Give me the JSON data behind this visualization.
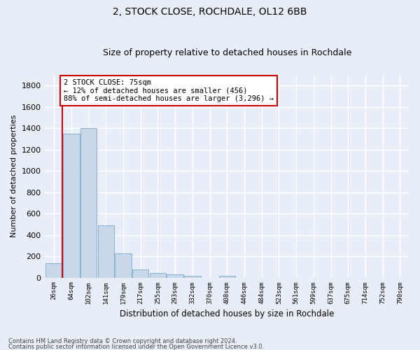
{
  "title": "2, STOCK CLOSE, ROCHDALE, OL12 6BB",
  "subtitle": "Size of property relative to detached houses in Rochdale",
  "xlabel": "Distribution of detached houses by size in Rochdale",
  "ylabel": "Number of detached properties",
  "bar_color": "#c8d8ea",
  "bar_edge_color": "#7aaac8",
  "vline_color": "#cc0000",
  "annotation_text": "2 STOCK CLOSE: 75sqm\n← 12% of detached houses are smaller (456)\n88% of semi-detached houses are larger (3,296) →",
  "annotation_box_color": "#cc0000",
  "background_color": "#e8eef8",
  "grid_color": "#ffffff",
  "categories": [
    "26sqm",
    "64sqm",
    "102sqm",
    "141sqm",
    "179sqm",
    "217sqm",
    "255sqm",
    "293sqm",
    "332sqm",
    "370sqm",
    "408sqm",
    "446sqm",
    "484sqm",
    "523sqm",
    "561sqm",
    "599sqm",
    "637sqm",
    "675sqm",
    "714sqm",
    "752sqm",
    "790sqm"
  ],
  "values": [
    135,
    1345,
    1400,
    490,
    225,
    75,
    45,
    27,
    15,
    0,
    20,
    0,
    0,
    0,
    0,
    0,
    0,
    0,
    0,
    0,
    0
  ],
  "ylim": [
    0,
    1900
  ],
  "yticks": [
    0,
    200,
    400,
    600,
    800,
    1000,
    1200,
    1400,
    1600,
    1800
  ],
  "footnote1": "Contains HM Land Registry data © Crown copyright and database right 2024.",
  "footnote2": "Contains public sector information licensed under the Open Government Licence v3.0."
}
